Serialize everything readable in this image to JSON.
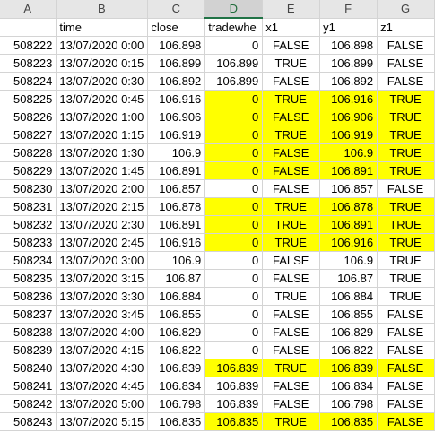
{
  "column_headers": [
    "A",
    "B",
    "C",
    "D",
    "E",
    "F",
    "G"
  ],
  "selected_column": 3,
  "highlight_color": "#ffff00",
  "header_row": [
    "",
    "time",
    "close",
    "tradewhe",
    "x1",
    "y1",
    "z1"
  ],
  "rows": [
    {
      "cells": [
        "508222",
        "13/07/2020 0:00",
        "106.898",
        "0",
        "FALSE",
        "106.898",
        "FALSE"
      ],
      "highlight": false
    },
    {
      "cells": [
        "508223",
        "13/07/2020 0:15",
        "106.899",
        "106.899",
        "TRUE",
        "106.899",
        "FALSE"
      ],
      "highlight": false
    },
    {
      "cells": [
        "508224",
        "13/07/2020 0:30",
        "106.892",
        "106.899",
        "FALSE",
        "106.892",
        "FALSE"
      ],
      "highlight": false
    },
    {
      "cells": [
        "508225",
        "13/07/2020 0:45",
        "106.916",
        "0",
        "TRUE",
        "106.916",
        "TRUE"
      ],
      "highlight": true
    },
    {
      "cells": [
        "508226",
        "13/07/2020 1:00",
        "106.906",
        "0",
        "FALSE",
        "106.906",
        "TRUE"
      ],
      "highlight": true
    },
    {
      "cells": [
        "508227",
        "13/07/2020 1:15",
        "106.919",
        "0",
        "TRUE",
        "106.919",
        "TRUE"
      ],
      "highlight": true
    },
    {
      "cells": [
        "508228",
        "13/07/2020 1:30",
        "106.9",
        "0",
        "FALSE",
        "106.9",
        "TRUE"
      ],
      "highlight": true
    },
    {
      "cells": [
        "508229",
        "13/07/2020 1:45",
        "106.891",
        "0",
        "FALSE",
        "106.891",
        "TRUE"
      ],
      "highlight": true
    },
    {
      "cells": [
        "508230",
        "13/07/2020 2:00",
        "106.857",
        "0",
        "FALSE",
        "106.857",
        "FALSE"
      ],
      "highlight": false
    },
    {
      "cells": [
        "508231",
        "13/07/2020 2:15",
        "106.878",
        "0",
        "TRUE",
        "106.878",
        "TRUE"
      ],
      "highlight": true
    },
    {
      "cells": [
        "508232",
        "13/07/2020 2:30",
        "106.891",
        "0",
        "TRUE",
        "106.891",
        "TRUE"
      ],
      "highlight": true
    },
    {
      "cells": [
        "508233",
        "13/07/2020 2:45",
        "106.916",
        "0",
        "TRUE",
        "106.916",
        "TRUE"
      ],
      "highlight": true
    },
    {
      "cells": [
        "508234",
        "13/07/2020 3:00",
        "106.9",
        "0",
        "FALSE",
        "106.9",
        "TRUE"
      ],
      "highlight": false
    },
    {
      "cells": [
        "508235",
        "13/07/2020 3:15",
        "106.87",
        "0",
        "FALSE",
        "106.87",
        "TRUE"
      ],
      "highlight": false
    },
    {
      "cells": [
        "508236",
        "13/07/2020 3:30",
        "106.884",
        "0",
        "TRUE",
        "106.884",
        "TRUE"
      ],
      "highlight": false
    },
    {
      "cells": [
        "508237",
        "13/07/2020 3:45",
        "106.855",
        "0",
        "FALSE",
        "106.855",
        "FALSE"
      ],
      "highlight": false
    },
    {
      "cells": [
        "508238",
        "13/07/2020 4:00",
        "106.829",
        "0",
        "FALSE",
        "106.829",
        "FALSE"
      ],
      "highlight": false
    },
    {
      "cells": [
        "508239",
        "13/07/2020 4:15",
        "106.822",
        "0",
        "FALSE",
        "106.822",
        "FALSE"
      ],
      "highlight": false
    },
    {
      "cells": [
        "508240",
        "13/07/2020 4:30",
        "106.839",
        "106.839",
        "TRUE",
        "106.839",
        "FALSE"
      ],
      "highlight": true
    },
    {
      "cells": [
        "508241",
        "13/07/2020 4:45",
        "106.834",
        "106.839",
        "FALSE",
        "106.834",
        "FALSE"
      ],
      "highlight": false
    },
    {
      "cells": [
        "508242",
        "13/07/2020 5:00",
        "106.798",
        "106.839",
        "FALSE",
        "106.798",
        "FALSE"
      ],
      "highlight": false
    },
    {
      "cells": [
        "508243",
        "13/07/2020 5:15",
        "106.835",
        "106.835",
        "TRUE",
        "106.835",
        "FALSE"
      ],
      "highlight": true
    }
  ]
}
